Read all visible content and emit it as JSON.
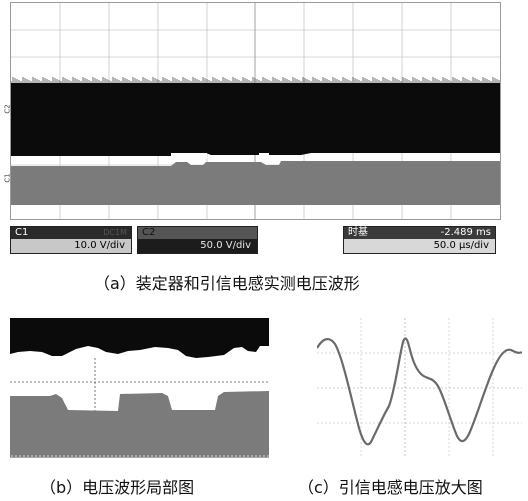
{
  "panel_a": {
    "channel_labels": {
      "c2": "C2",
      "c1": "C1"
    },
    "readout_c1": {
      "channel": "C1",
      "coupling": "DC1M",
      "scale": "10.0 V/div"
    },
    "readout_c2": {
      "channel": "C2",
      "scale": "50.0 V/div"
    },
    "readout_time": {
      "label": "时基",
      "offset": "-2.489 ms",
      "scale": "50.0 μs/div"
    },
    "caption": "（a）装定器和引信电感实测电压波形"
  },
  "panel_b": {
    "caption": "（b）电压波形局部图"
  },
  "panel_c": {
    "caption": "（c）引信电感电压放大图"
  },
  "colors": {
    "upper_trace": "#0b0b0b",
    "lower_trace": "#7b7b7b",
    "grid": "#b5b5b5",
    "waveform_c": "#6a6a6a"
  }
}
